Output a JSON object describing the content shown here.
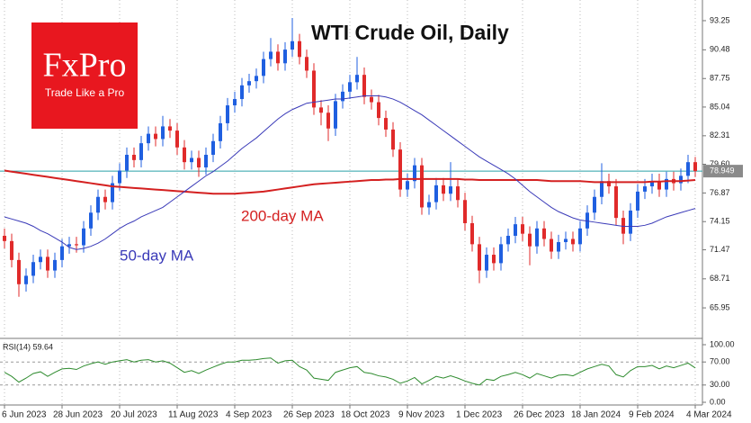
{
  "chart_data": [
    {
      "type": "candlestick",
      "title": "WTI Crude Oil, Daily",
      "logo": {
        "brand": "FxPro",
        "tagline": "Trade Like a Pro"
      },
      "categories": [
        "6 Jun 2023",
        null,
        null,
        null,
        null,
        null,
        null,
        null,
        "28 Jun 2023",
        null,
        null,
        null,
        null,
        null,
        null,
        null,
        "20 Jul 2023",
        null,
        null,
        null,
        null,
        null,
        null,
        null,
        "11 Aug 2023",
        null,
        null,
        null,
        null,
        null,
        null,
        null,
        "4 Sep 2023",
        null,
        null,
        null,
        null,
        null,
        null,
        null,
        "26 Sep 2023",
        null,
        null,
        null,
        null,
        null,
        null,
        null,
        "18 Oct 2023",
        null,
        null,
        null,
        null,
        null,
        null,
        null,
        "9 Nov 2023",
        null,
        null,
        null,
        null,
        null,
        null,
        null,
        "1 Dec 2023",
        null,
        null,
        null,
        null,
        null,
        null,
        null,
        "26 Dec 2023",
        null,
        null,
        null,
        null,
        null,
        null,
        null,
        "18 Jan 2024",
        null,
        null,
        null,
        null,
        null,
        null,
        null,
        "9 Feb 2024",
        null,
        null,
        null,
        null,
        null,
        null,
        null,
        "4 Mar 2024"
      ],
      "open": [
        72.8,
        72.3,
        70.5,
        68.2,
        69.0,
        70.3,
        70.8,
        69.5,
        70.5,
        71.8,
        72.0,
        71.9,
        73.5,
        75.0,
        76.5,
        76.0,
        77.8,
        79.0,
        80.5,
        80.0,
        81.6,
        82.5,
        82.0,
        83.2,
        82.8,
        81.2,
        79.8,
        80.2,
        79.3,
        80.5,
        81.8,
        83.5,
        85.2,
        85.8,
        87.1,
        87.5,
        88.0,
        89.6,
        90.3,
        89.2,
        90.5,
        91.3,
        89.8,
        88.5,
        85.0,
        84.5,
        83.0,
        85.6,
        86.5,
        87.4,
        88.1,
        86.0,
        85.5,
        84.0,
        82.9,
        81.0,
        77.2,
        78.0,
        79.5,
        75.5,
        76.0,
        77.6,
        76.8,
        77.5,
        76.2,
        74.0,
        72.0,
        69.5,
        71.0,
        70.2,
        72.0,
        72.8,
        73.9,
        73.0,
        71.8,
        73.5,
        72.5,
        71.3,
        72.2,
        72.5,
        72.0,
        73.5,
        75.0,
        76.5,
        78.0,
        77.5,
        74.5,
        73.0,
        75.2,
        77.0,
        77.5,
        78.0,
        77.2,
        78.2,
        77.8,
        78.5,
        79.8
      ],
      "high": [
        73.5,
        73.0,
        71.2,
        69.7,
        71.0,
        71.5,
        71.5,
        71.2,
        72.5,
        72.7,
        72.7,
        74.2,
        75.7,
        77.2,
        77.2,
        78.5,
        79.7,
        81.2,
        81.2,
        82.3,
        83.2,
        83.2,
        84.2,
        83.9,
        83.5,
        81.9,
        80.9,
        80.9,
        81.2,
        82.5,
        84.2,
        85.9,
        86.5,
        87.8,
        88.2,
        88.7,
        90.3,
        91.6,
        91.0,
        91.2,
        93.5,
        92.0,
        90.5,
        89.2,
        85.7,
        85.2,
        86.3,
        87.2,
        88.1,
        89.8,
        88.8,
        86.7,
        86.2,
        84.7,
        83.6,
        81.7,
        78.7,
        80.2,
        80.2,
        76.7,
        78.3,
        78.3,
        79.8,
        78.2,
        76.9,
        74.7,
        72.7,
        71.7,
        71.7,
        72.7,
        73.5,
        74.6,
        74.6,
        73.7,
        74.2,
        74.2,
        73.2,
        72.9,
        73.2,
        73.2,
        74.2,
        75.7,
        77.2,
        79.7,
        78.7,
        78.2,
        75.2,
        75.9,
        77.7,
        78.2,
        78.7,
        78.7,
        78.9,
        78.9,
        79.2,
        80.5,
        80.3
      ],
      "low": [
        71.6,
        69.8,
        67.0,
        67.5,
        68.3,
        69.6,
        68.8,
        68.8,
        69.8,
        71.1,
        71.2,
        71.2,
        72.8,
        74.3,
        75.3,
        75.3,
        77.1,
        78.3,
        79.3,
        79.3,
        80.9,
        81.3,
        81.3,
        82.1,
        80.5,
        79.1,
        79.1,
        78.4,
        78.6,
        79.8,
        81.1,
        82.8,
        84.5,
        85.1,
        86.4,
        86.8,
        87.3,
        88.9,
        88.5,
        88.5,
        89.8,
        89.1,
        87.8,
        84.3,
        83.3,
        81.8,
        82.3,
        84.9,
        85.8,
        86.7,
        85.3,
        84.8,
        83.3,
        82.2,
        80.3,
        76.5,
        76.5,
        77.3,
        74.8,
        74.8,
        75.3,
        76.1,
        76.1,
        75.5,
        73.3,
        71.3,
        68.3,
        68.8,
        69.5,
        69.5,
        71.3,
        72.1,
        72.3,
        70.0,
        71.1,
        71.8,
        70.6,
        70.6,
        71.5,
        71.3,
        71.3,
        72.8,
        74.3,
        75.8,
        76.8,
        73.8,
        72.0,
        72.3,
        74.5,
        76.3,
        76.8,
        76.5,
        76.5,
        77.1,
        77.1,
        77.8,
        78.4
      ],
      "close": [
        72.3,
        70.5,
        68.2,
        69.0,
        70.3,
        70.8,
        69.5,
        70.5,
        71.8,
        72.0,
        71.9,
        73.5,
        75.0,
        76.5,
        76.0,
        77.8,
        79.0,
        80.5,
        80.0,
        81.6,
        82.5,
        82.0,
        83.2,
        82.8,
        81.2,
        79.8,
        80.2,
        79.3,
        80.5,
        81.8,
        83.5,
        85.2,
        85.8,
        87.1,
        87.5,
        88.0,
        89.6,
        90.3,
        89.2,
        90.5,
        91.3,
        89.8,
        88.5,
        85.0,
        84.5,
        83.0,
        85.6,
        86.5,
        87.4,
        88.1,
        86.0,
        85.5,
        84.0,
        82.9,
        81.0,
        77.2,
        78.0,
        79.5,
        75.5,
        76.0,
        77.6,
        76.8,
        77.5,
        76.2,
        74.0,
        72.0,
        69.5,
        71.0,
        70.2,
        72.0,
        72.8,
        73.9,
        73.0,
        71.8,
        73.5,
        72.5,
        71.3,
        72.2,
        72.5,
        72.0,
        73.5,
        75.0,
        76.5,
        78.0,
        77.5,
        74.5,
        73.0,
        75.2,
        77.0,
        77.5,
        78.0,
        77.2,
        78.2,
        77.8,
        78.5,
        79.8,
        78.95
      ],
      "up_color": "#1f5fe0",
      "down_color": "#e02a2a",
      "series": [
        {
          "name": "200-day MA",
          "color": "#d42020",
          "values": [
            79.0,
            78.9,
            78.8,
            78.7,
            78.6,
            78.5,
            78.4,
            78.3,
            78.2,
            78.1,
            78.0,
            77.9,
            77.8,
            77.7,
            77.6,
            77.5,
            77.45,
            77.4,
            77.35,
            77.3,
            77.25,
            77.2,
            77.15,
            77.1,
            77.05,
            77.0,
            76.95,
            76.9,
            76.85,
            76.8,
            76.8,
            76.8,
            76.8,
            76.85,
            76.9,
            76.95,
            77.0,
            77.1,
            77.2,
            77.3,
            77.4,
            77.5,
            77.6,
            77.7,
            77.75,
            77.8,
            77.85,
            77.9,
            77.95,
            78.0,
            78.05,
            78.1,
            78.1,
            78.15,
            78.15,
            78.2,
            78.2,
            78.2,
            78.2,
            78.2,
            78.2,
            78.2,
            78.2,
            78.2,
            78.15,
            78.15,
            78.1,
            78.1,
            78.1,
            78.1,
            78.1,
            78.1,
            78.1,
            78.1,
            78.1,
            78.05,
            78.0,
            78.0,
            78.0,
            78.0,
            78.0,
            77.95,
            77.9,
            77.9,
            77.9,
            77.9,
            77.9,
            77.9,
            77.9,
            77.9,
            77.95,
            77.95,
            78.0,
            78.0,
            78.0,
            78.05,
            78.1
          ]
        },
        {
          "name": "50-day MA",
          "color": "#3a3ab8",
          "values": [
            74.6,
            74.4,
            74.2,
            74.0,
            73.7,
            73.3,
            73.0,
            72.6,
            72.2,
            71.7,
            71.5,
            71.6,
            71.8,
            72.1,
            72.5,
            73.0,
            73.5,
            73.9,
            74.2,
            74.6,
            74.9,
            75.2,
            75.5,
            76.0,
            76.5,
            77.0,
            77.5,
            78.0,
            78.5,
            78.9,
            79.4,
            79.9,
            80.5,
            81.1,
            81.6,
            82.1,
            82.7,
            83.3,
            83.9,
            84.4,
            84.8,
            85.1,
            85.4,
            85.5,
            85.6,
            85.7,
            85.8,
            85.8,
            85.9,
            86.0,
            86.1,
            86.1,
            86.1,
            86.0,
            85.8,
            85.5,
            85.1,
            84.7,
            84.3,
            83.8,
            83.3,
            82.8,
            82.3,
            81.8,
            81.3,
            80.8,
            80.3,
            79.9,
            79.5,
            79.1,
            78.7,
            78.2,
            77.6,
            77.0,
            76.5,
            76.0,
            75.5,
            75.1,
            74.8,
            74.5,
            74.3,
            74.2,
            74.1,
            74.0,
            73.9,
            73.8,
            73.7,
            73.7,
            73.7,
            73.8,
            74.0,
            74.3,
            74.6,
            74.8,
            75.0,
            75.2,
            75.4
          ]
        }
      ],
      "current_price": 78.949,
      "current_price_color": "#2aa0a8",
      "ylim": [
        63.39,
        94.53
      ],
      "yticks": [
        65.95,
        68.71,
        71.47,
        74.15,
        76.87,
        {
          "value": 79.6,
          "label": "79.60"
        },
        82.31,
        85.04,
        87.75,
        90.48,
        93.25
      ],
      "grid": "vertical"
    },
    {
      "type": "line",
      "title": "RSI(14) 59.64",
      "series": [
        {
          "name": "RSI(14)",
          "color": "#2e8b2e",
          "values": [
            52,
            45,
            35,
            42,
            50,
            53,
            45,
            52,
            58,
            59,
            57,
            63,
            67,
            70,
            66,
            70,
            72,
            74,
            70,
            73,
            74,
            70,
            72,
            68,
            60,
            52,
            55,
            50,
            56,
            61,
            66,
            70,
            70,
            73,
            73,
            74,
            76,
            77,
            68,
            72,
            73,
            62,
            56,
            42,
            40,
            38,
            52,
            56,
            60,
            62,
            52,
            50,
            46,
            44,
            40,
            33,
            37,
            43,
            32,
            38,
            45,
            42,
            46,
            42,
            37,
            33,
            30,
            40,
            38,
            45,
            48,
            52,
            48,
            42,
            50,
            46,
            42,
            47,
            48,
            46,
            52,
            58,
            62,
            66,
            63,
            48,
            44,
            55,
            62,
            62,
            64,
            58,
            63,
            60,
            64,
            68,
            59.64
          ]
        }
      ],
      "ylim": [
        0,
        100
      ],
      "yticks": [
        {
          "value": 0,
          "label": "0.00"
        },
        {
          "value": 30,
          "label": "30.00"
        },
        {
          "value": 70,
          "label": "70.00"
        },
        {
          "value": 100,
          "label": "100.00"
        }
      ],
      "levels": [
        30,
        70
      ]
    }
  ]
}
